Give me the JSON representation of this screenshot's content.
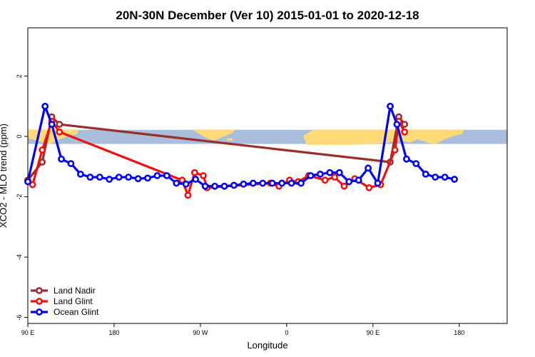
{
  "chart_data": {
    "type": "line",
    "title": "20N-30N December (Ver 10)   2015-01-01 to 2020-12-18",
    "xlabel": "Longitude",
    "ylabel": "XCO2 - MLO trend (ppm)",
    "xlim": [
      0,
      500
    ],
    "ylim": [
      -6.2,
      3.6
    ],
    "x_ticks": [
      {
        "value": 0,
        "label": "90 E"
      },
      {
        "value": 90,
        "label": "180"
      },
      {
        "value": 180,
        "label": "90 W"
      },
      {
        "value": 270,
        "label": "0"
      },
      {
        "value": 360,
        "label": "90 E"
      },
      {
        "value": 450,
        "label": "180"
      }
    ],
    "y_ticks": [
      {
        "value": 2,
        "label": "2"
      },
      {
        "value": 0,
        "label": "0"
      },
      {
        "value": -2,
        "label": "-2"
      },
      {
        "value": -4,
        "label": "-4"
      },
      {
        "value": -6,
        "label": "-6"
      }
    ],
    "map_band": {
      "y_min": -0.25,
      "y_max": 0.22,
      "ocean_color": "#a8bedb",
      "land_color": "#fdd97a"
    },
    "legend_position": "bottom-left",
    "series": [
      {
        "name": "Land Nadir",
        "color": "#9b2d2d",
        "x": [
          0,
          15,
          25,
          33,
          378,
          387,
          393
        ],
        "y": [
          -1.45,
          -0.85,
          0.65,
          0.4,
          -0.85,
          0.65,
          0.4
        ]
      },
      {
        "name": "Land Glint",
        "color": "#ee1111",
        "x": [
          5,
          15,
          25,
          33,
          161,
          167,
          174,
          183,
          187,
          253,
          262,
          273,
          282,
          293,
          310,
          320,
          330,
          341,
          356,
          368,
          383,
          387,
          393
        ],
        "y": [
          -1.6,
          -0.45,
          0.5,
          0.15,
          -1.45,
          -1.95,
          -1.2,
          -1.3,
          -1.7,
          -1.55,
          -1.65,
          -1.45,
          -1.5,
          -1.3,
          -1.45,
          -1.35,
          -1.65,
          -1.4,
          -1.7,
          -1.6,
          -0.45,
          0.5,
          0.15
        ]
      },
      {
        "name": "Ocean Glint",
        "color": "#0000ee",
        "x": [
          0,
          18,
          25,
          35,
          45,
          55,
          65,
          75,
          85,
          95,
          105,
          115,
          125,
          135,
          145,
          155,
          165,
          175,
          185,
          195,
          205,
          215,
          225,
          235,
          245,
          255,
          265,
          275,
          285,
          295,
          305,
          315,
          325,
          335,
          345,
          355,
          365,
          378,
          385,
          395,
          405,
          415,
          425,
          435,
          445
        ],
        "y": [
          -1.5,
          1.0,
          0.4,
          -0.75,
          -0.9,
          -1.25,
          -1.35,
          -1.35,
          -1.42,
          -1.35,
          -1.35,
          -1.4,
          -1.38,
          -1.3,
          -1.3,
          -1.55,
          -1.58,
          -1.42,
          -1.65,
          -1.65,
          -1.65,
          -1.62,
          -1.58,
          -1.55,
          -1.55,
          -1.55,
          -1.55,
          -1.55,
          -1.55,
          -1.3,
          -1.25,
          -1.2,
          -1.2,
          -1.5,
          -1.45,
          -1.05,
          -1.55,
          1.0,
          0.4,
          -0.75,
          -0.9,
          -1.25,
          -1.35,
          -1.35,
          -1.42
        ]
      }
    ]
  }
}
